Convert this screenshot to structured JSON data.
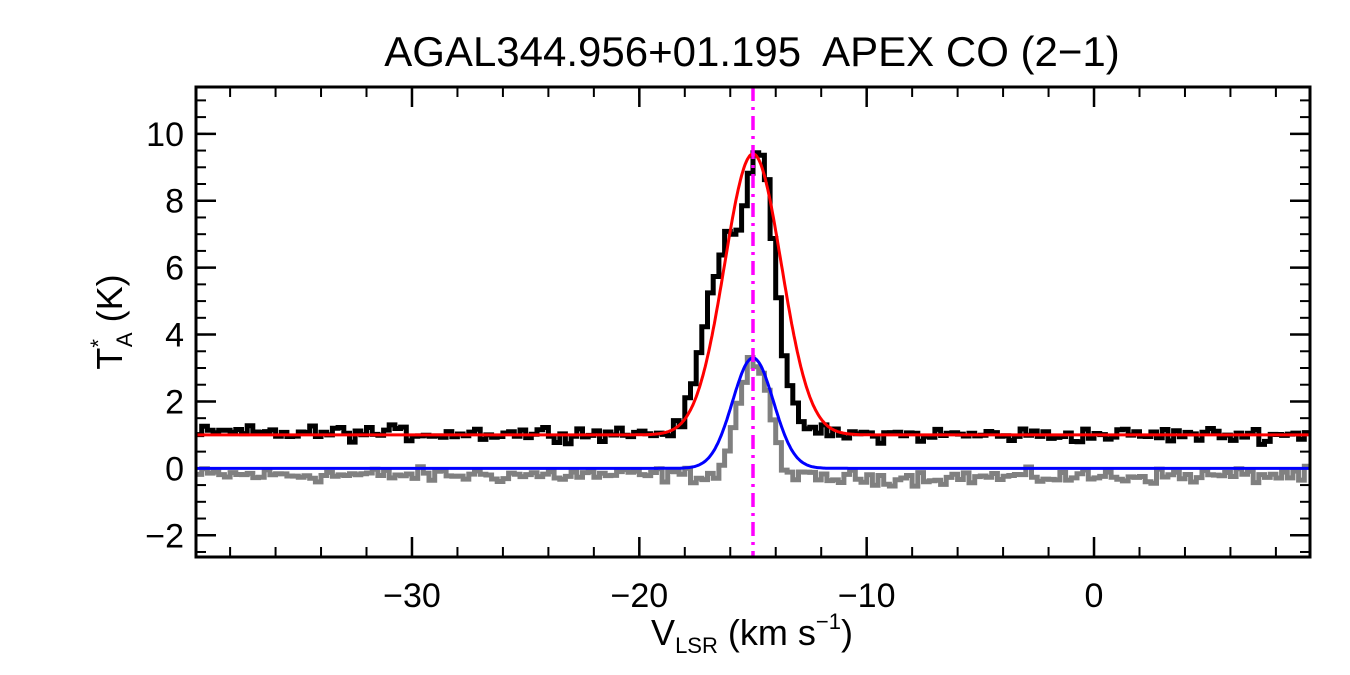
{
  "chart_data": {
    "type": "line",
    "title": "AGAL344.956+01.195  APEX CO (2−1)",
    "xlabel": {
      "main": "V",
      "sub": "LSR",
      "rest": " (km s",
      "sup": "−1",
      "end": ")"
    },
    "ylabel": {
      "main": "T",
      "sup": "*",
      "sub": "A",
      "rest": " (K)"
    },
    "xlim": [
      -39.5,
      9.5
    ],
    "ylim": [
      -2.65,
      11.4
    ],
    "xticks": [
      -30,
      -20,
      -10,
      0
    ],
    "xtick_labels": [
      "−30",
      "−20",
      "−10",
      "0"
    ],
    "yticks": [
      -2,
      0,
      2,
      4,
      6,
      8,
      10
    ],
    "ytick_labels": [
      "−2",
      "0",
      "2",
      "4",
      "6",
      "8",
      "10"
    ],
    "x_minor_step": 2,
    "y_minor_step": 0.5,
    "grid": false,
    "legend": "none",
    "vline": {
      "x": -15.0,
      "color": "#ff00ff",
      "style": "dash-dot"
    },
    "colors": {
      "spectrum": "#000000",
      "residual": "#808080",
      "offset_fit": "#ff0000",
      "fit": "#0000ff"
    },
    "channel_width": 0.25,
    "spectrum_offset": 1.0,
    "fit_gaussian": {
      "amplitude": 3.3,
      "center": -15.0,
      "sigma": 0.9
    },
    "offset_fit_gaussian": {
      "amplitude": 8.4,
      "center": -15.0,
      "sigma": 1.25,
      "baseline": 1.0
    },
    "spectrum_profile": {
      "x": [
        -39.5,
        -19.0,
        -18.25,
        -17.75,
        -17.25,
        -16.75,
        -16.25,
        -15.75,
        -15.5,
        -15.25,
        -15.0,
        -14.75,
        -14.5,
        -14.25,
        -14.0,
        -13.75,
        -13.5,
        -13.0,
        -12.25,
        -11.0,
        9.5
      ],
      "y": [
        1.05,
        1.05,
        1.2,
        2.1,
        3.8,
        5.6,
        6.8,
        7.2,
        7.5,
        8.4,
        9.3,
        9.6,
        9.4,
        8.0,
        6.0,
        4.0,
        2.5,
        1.5,
        1.1,
        1.0,
        1.0
      ]
    },
    "residual_profile": {
      "x": [
        -39.5,
        -16.5,
        -16.0,
        -15.5,
        -15.0,
        -14.5,
        -14.0,
        -13.5,
        -13.0,
        9.5
      ],
      "y": [
        -0.2,
        -0.2,
        0.8,
        2.4,
        3.3,
        2.6,
        1.0,
        -0.1,
        -0.3,
        -0.2
      ]
    }
  }
}
